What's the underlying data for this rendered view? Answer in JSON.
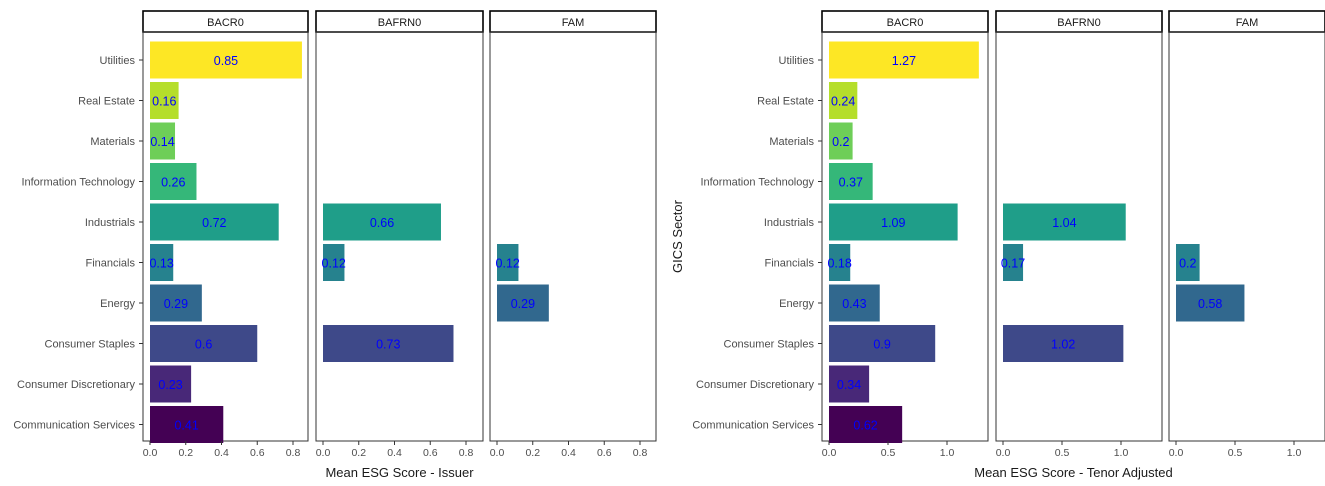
{
  "chart_data": [
    {
      "type": "bar",
      "orientation": "horizontal",
      "facets": [
        "BACR0",
        "BAFRN0",
        "FAM"
      ],
      "categories": [
        "Utilities",
        "Real Estate",
        "Materials",
        "Information Technology",
        "Industrials",
        "Financials",
        "Energy",
        "Consumer Staples",
        "Consumer Discretionary",
        "Communication Services"
      ],
      "series": [
        {
          "facet": "BACR0",
          "values": [
            0.85,
            0.16,
            0.14,
            0.26,
            0.72,
            0.13,
            0.29,
            0.6,
            0.23,
            0.41
          ]
        },
        {
          "facet": "BAFRN0",
          "values": [
            null,
            null,
            null,
            null,
            0.66,
            0.12,
            null,
            0.73,
            null,
            null
          ]
        },
        {
          "facet": "FAM",
          "values": [
            null,
            null,
            null,
            null,
            null,
            0.12,
            0.29,
            null,
            null,
            null
          ]
        }
      ],
      "bar_labels": [
        [
          "0.85",
          "0.16",
          "0.14",
          "0.26",
          "0.72",
          "0.13",
          "0.29",
          "0.6",
          "0.23",
          "0.41"
        ],
        [
          null,
          null,
          null,
          null,
          "0.66",
          "0.12",
          null,
          "0.73",
          null,
          null
        ],
        [
          null,
          null,
          null,
          null,
          null,
          "0.12",
          "0.29",
          null,
          null,
          null
        ]
      ],
      "xlabel": "Mean ESG Score - Issuer",
      "ylabel": "",
      "xlim": [
        0,
        0.9
      ],
      "x_ticks": [
        0.0,
        0.2,
        0.4,
        0.6,
        0.8
      ],
      "x_tick_labels": [
        "0.0",
        "0.2",
        "0.4",
        "0.6",
        "0.8"
      ],
      "grid": false,
      "legend": "none"
    },
    {
      "type": "bar",
      "orientation": "horizontal",
      "facets": [
        "BACR0",
        "BAFRN0",
        "FAM"
      ],
      "categories": [
        "Utilities",
        "Real Estate",
        "Materials",
        "Information Technology",
        "Industrials",
        "Financials",
        "Energy",
        "Consumer Staples",
        "Consumer Discretionary",
        "Communication Services"
      ],
      "series": [
        {
          "facet": "BACR0",
          "values": [
            1.27,
            0.24,
            0.2,
            0.37,
            1.09,
            0.18,
            0.43,
            0.9,
            0.34,
            0.62
          ]
        },
        {
          "facet": "BAFRN0",
          "values": [
            null,
            null,
            null,
            null,
            1.04,
            0.17,
            null,
            1.02,
            null,
            null
          ]
        },
        {
          "facet": "FAM",
          "values": [
            null,
            null,
            null,
            null,
            null,
            0.2,
            0.58,
            null,
            null,
            null
          ]
        }
      ],
      "bar_labels": [
        [
          "1.27",
          "0.24",
          "0.2",
          "0.37",
          "1.09",
          "0.18",
          "0.43",
          "0.9",
          "0.34",
          "0.62"
        ],
        [
          null,
          null,
          null,
          null,
          "1.04",
          "0.17",
          null,
          "1.02",
          null,
          null
        ],
        [
          null,
          null,
          null,
          null,
          null,
          "0.2",
          "0.58",
          null,
          null,
          null
        ]
      ],
      "xlabel": "Mean ESG Score - Tenor Adjusted",
      "ylabel": "GICS Sector",
      "xlim": [
        -0.05,
        1.34
      ],
      "x_ticks": [
        0.0,
        0.5,
        1.0
      ],
      "x_tick_labels": [
        "0.0",
        "0.5",
        "1.0"
      ],
      "grid": false,
      "legend": "none"
    }
  ],
  "colors": {
    "bar_fill": [
      "#FDE725",
      "#B5DE2B",
      "#6ECE58",
      "#35B779",
      "#1F9E89",
      "#26828E",
      "#31688E",
      "#3E4989",
      "#482878",
      "#440154"
    ],
    "bar_label_text": "#0000FF",
    "strip_border": "#000000",
    "panel_border": "#333333",
    "axis_text": "#4D4D4D",
    "title_text": "#1A1A1A"
  }
}
